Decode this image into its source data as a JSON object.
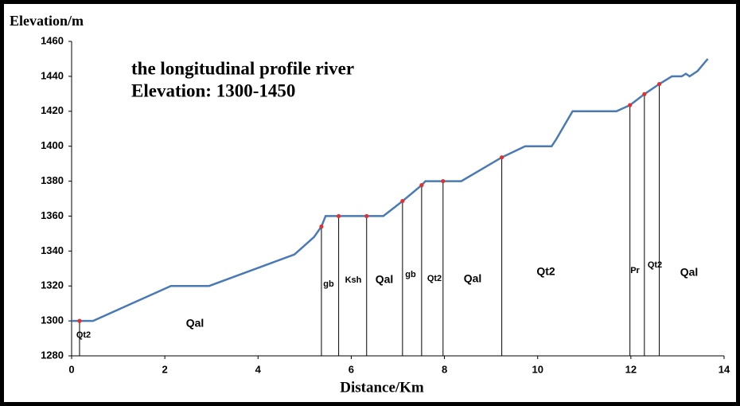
{
  "chart_data": {
    "type": "line",
    "title": "the longitudinal profile river",
    "subtitle": "Elevation: 1300-1450",
    "y_label": "Elevation/m",
    "x_label": "Distance/Km",
    "xlim": [
      0,
      14
    ],
    "ylim": [
      1280,
      1460
    ],
    "xticks": [
      0,
      2,
      4,
      6,
      8,
      10,
      12,
      14
    ],
    "yticks": [
      1280,
      1300,
      1320,
      1340,
      1360,
      1380,
      1400,
      1420,
      1440,
      1460
    ],
    "grid": false,
    "line": {
      "color": "#4a7ab5",
      "x": [
        0,
        0.46,
        2.13,
        2.95,
        4.78,
        5.2,
        5.36,
        5.45,
        6.69,
        7.1,
        7.51,
        7.59,
        8.36,
        9.23,
        9.73,
        10.3,
        10.4,
        10.75,
        11.69,
        11.77,
        11.98,
        12.29,
        12.61,
        12.88,
        13.09,
        13.18,
        13.26,
        13.43,
        13.65
      ],
      "y": [
        1300,
        1300,
        1320,
        1320,
        1338,
        1348,
        1354,
        1360,
        1360,
        1368.6,
        1377.7,
        1380,
        1380,
        1393.6,
        1400,
        1400,
        1404,
        1420,
        1420,
        1421,
        1423.5,
        1429.8,
        1435.6,
        1440,
        1440,
        1441.5,
        1440,
        1443,
        1450
      ]
    },
    "points": {
      "color": "#e03030",
      "x": [
        0.17,
        5.36,
        5.73,
        6.33,
        7.1,
        7.51,
        7.97,
        9.23,
        11.98,
        12.29,
        12.61
      ],
      "y": [
        1300,
        1354,
        1360,
        1360,
        1368.6,
        1377.7,
        1380,
        1393.6,
        1423.5,
        1429.8,
        1435.6
      ]
    },
    "zone_labels": [
      "Qt2",
      "Qal",
      "gb",
      "Ksh",
      "Qal",
      "gb",
      "Qt2",
      "Qal",
      "Qt2",
      "Pr",
      "Qt2",
      "Qal"
    ]
  }
}
